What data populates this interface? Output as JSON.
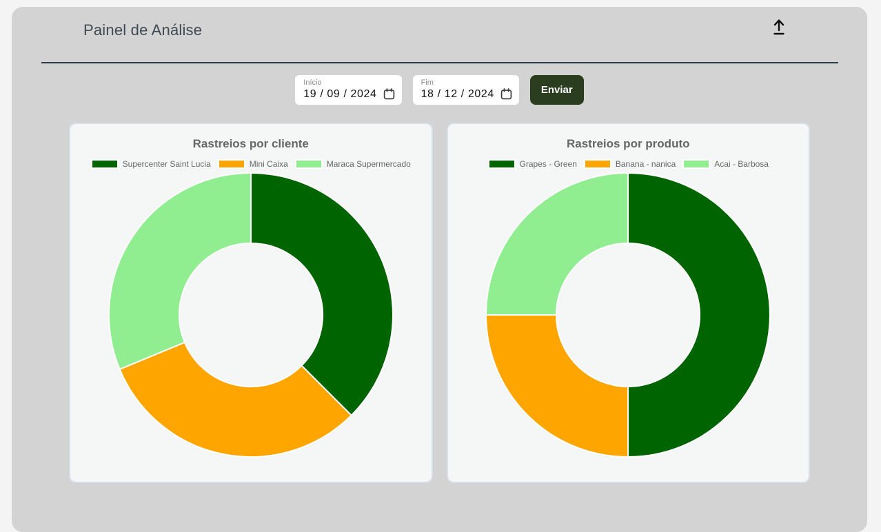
{
  "header": {
    "title": "Painel de Análise"
  },
  "icons": {
    "upload": "upload-icon",
    "calendar": "calendar-icon"
  },
  "filters": {
    "start_label": "Início",
    "start_value": "19 / 09 / 2024",
    "end_label": "Fim",
    "end_value": "18 / 12 / 2024",
    "submit_label": "Enviar"
  },
  "colors": {
    "page_bg": "#f3f4f3",
    "panel_bg": "#d2d3d2",
    "card_bg": "#f5f6f6",
    "card_border": "#d7dfe9",
    "divider": "#2c3e50",
    "submit_button_bg": "#2a3d1e",
    "chart_text": "#666666",
    "series": [
      "#006400",
      "#FFA500",
      "#90EE90"
    ]
  },
  "chart_data": [
    {
      "type": "pie",
      "variant": "doughnut",
      "title": "Rastreios por cliente",
      "labels": [
        "Supercenter Saint Lucia",
        "Mini Caixa",
        "Maraca Supermercado"
      ],
      "values": [
        6,
        5,
        5
      ],
      "percents": [
        37.5,
        31.25,
        31.25
      ],
      "colors": [
        "#006400",
        "#FFA500",
        "#90EE90"
      ],
      "start_angle_deg": 0,
      "direction": "clockwise",
      "cutout_percent": 50,
      "legend_position": "top"
    },
    {
      "type": "pie",
      "variant": "doughnut",
      "title": "Rastreios por produto",
      "labels": [
        "Grapes - Green",
        "Banana - nanica",
        "Acai - Barbosa"
      ],
      "values": [
        2,
        1,
        1
      ],
      "percents": [
        50,
        25,
        25
      ],
      "colors": [
        "#006400",
        "#FFA500",
        "#90EE90"
      ],
      "start_angle_deg": 0,
      "direction": "clockwise",
      "cutout_percent": 50,
      "legend_position": "top"
    }
  ]
}
